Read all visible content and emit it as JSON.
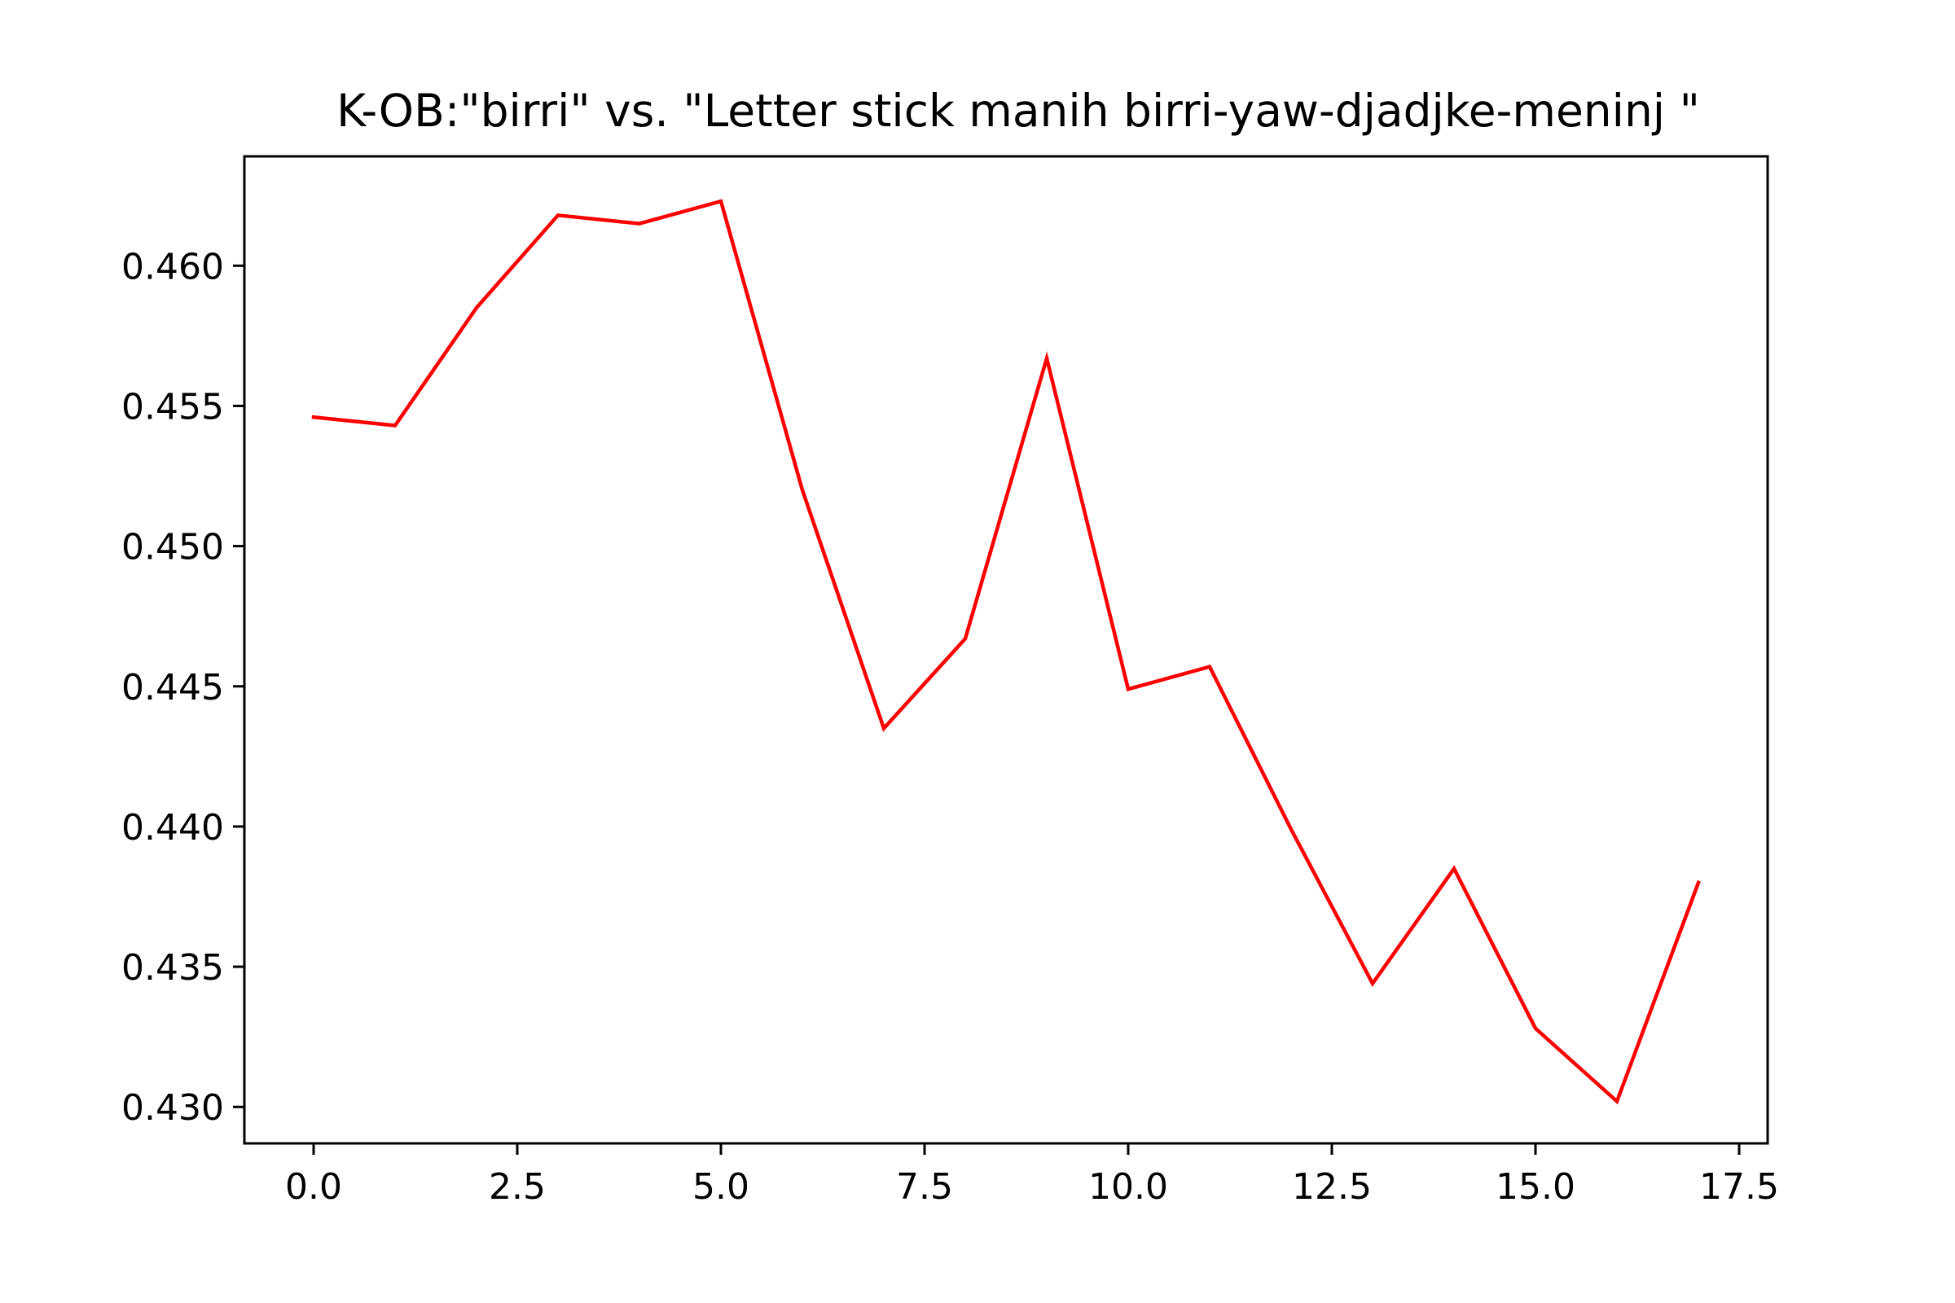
{
  "chart_data": {
    "type": "line",
    "title": "K-OB:\"birri\" vs. \"Letter stick manih birri-yaw-djadjke-meninj \"",
    "xlabel": "",
    "ylabel": "",
    "xlim": [
      -0.85,
      17.85
    ],
    "ylim": [
      0.4287,
      0.4639
    ],
    "x_ticks": [
      0.0,
      2.5,
      5.0,
      7.5,
      10.0,
      12.5,
      15.0,
      17.5
    ],
    "x_tick_labels": [
      "0.0",
      "2.5",
      "5.0",
      "7.5",
      "10.0",
      "12.5",
      "15.0",
      "17.5"
    ],
    "y_ticks": [
      0.43,
      0.435,
      0.44,
      0.445,
      0.45,
      0.455,
      0.46
    ],
    "y_tick_labels": [
      "0.430",
      "0.435",
      "0.440",
      "0.445",
      "0.450",
      "0.455",
      "0.460"
    ],
    "grid": false,
    "series": [
      {
        "name": "",
        "color": "#ff0000",
        "x": [
          0,
          1,
          2,
          3,
          4,
          5,
          6,
          7,
          8,
          9,
          10,
          11,
          12,
          13,
          14,
          15,
          16,
          17
        ],
        "y": [
          0.4546,
          0.4543,
          0.4585,
          0.4618,
          0.4615,
          0.4623,
          0.452,
          0.4435,
          0.4467,
          0.4567,
          0.4449,
          0.4457,
          0.4399,
          0.4344,
          0.4385,
          0.4328,
          0.4302,
          0.438
        ]
      }
    ]
  }
}
